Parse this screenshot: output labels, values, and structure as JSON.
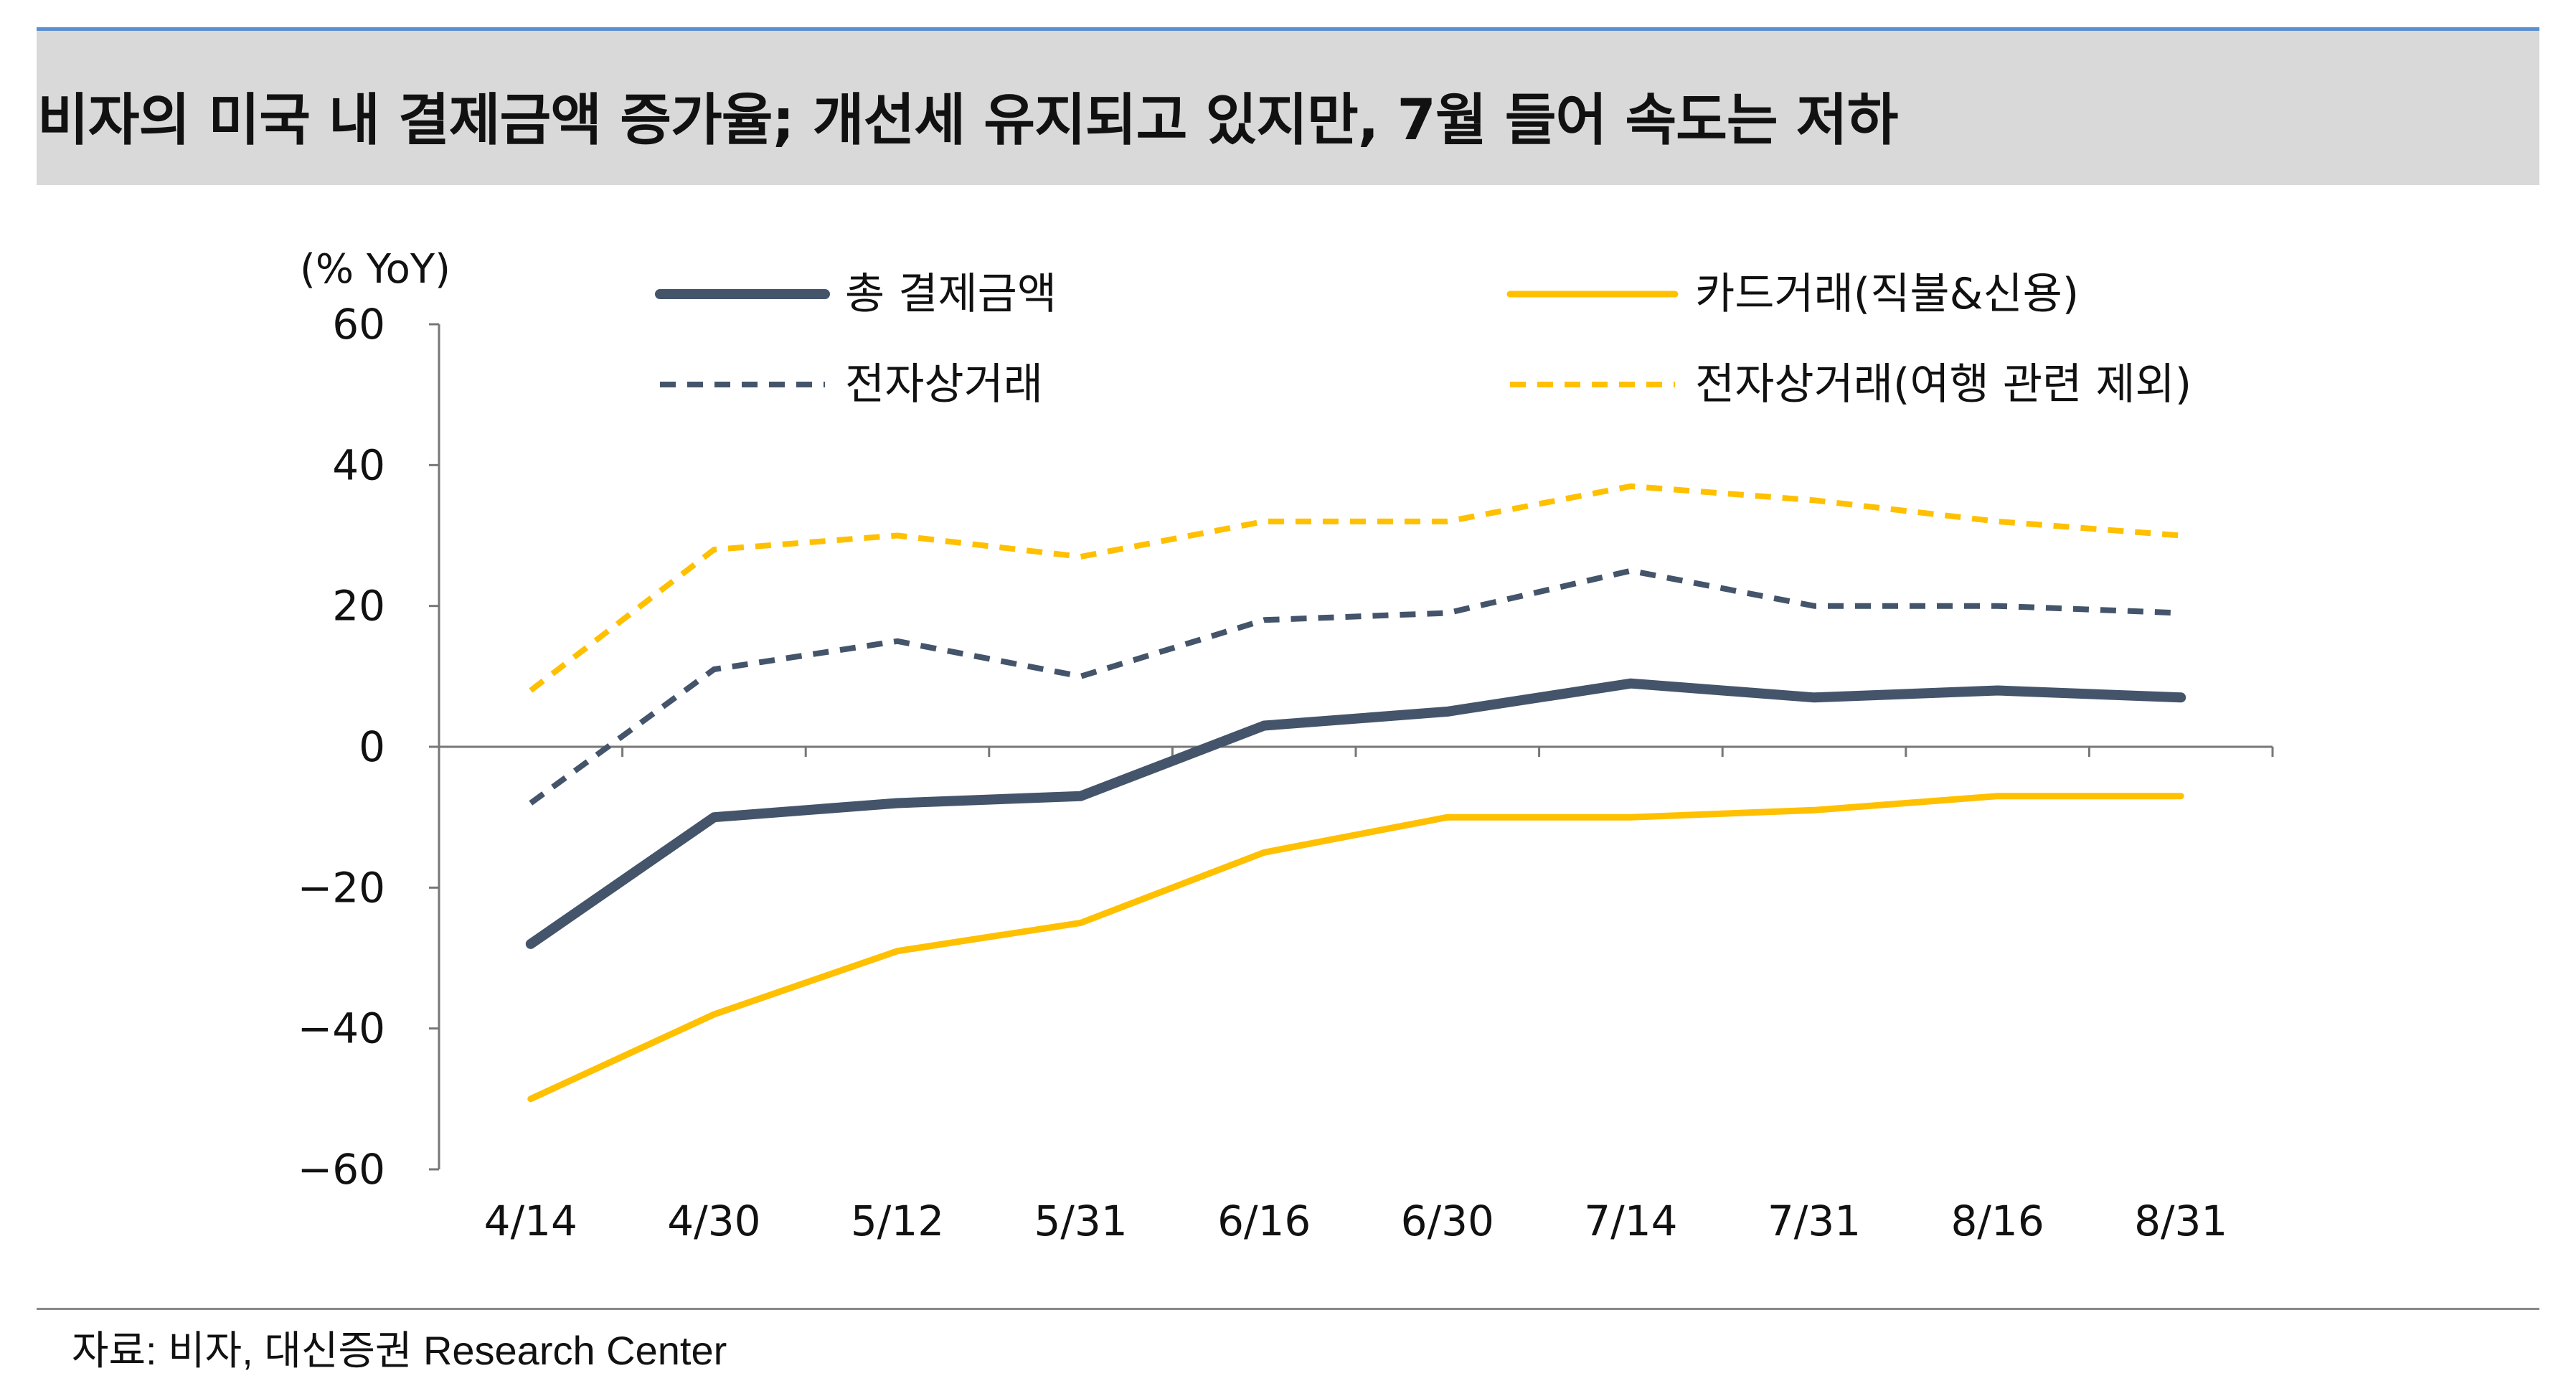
{
  "title": "비자의 미국 내 결제금액 증가율; 개선세 유지되고 있지만, 7월 들어 속도는 저하",
  "source": "자료: 비자, 대신증권 Research Center",
  "colors": {
    "navy": "#44546a",
    "gold": "#ffc000",
    "axis": "#777777"
  },
  "chart_data": {
    "type": "line",
    "ylabel": "(% YoY)",
    "ylim": [
      -60,
      60
    ],
    "yticks": [
      60,
      40,
      20,
      0,
      -20,
      -40,
      -60
    ],
    "ytick_labels": [
      "60",
      "40",
      "20",
      "0",
      "−20",
      "−40",
      "−60"
    ],
    "categories": [
      "4/14",
      "4/30",
      "5/12",
      "5/31",
      "6/16",
      "6/30",
      "7/14",
      "7/31",
      "8/16",
      "8/31"
    ],
    "legend_position": "top",
    "series": [
      {
        "name": "총 결제금액",
        "color": "#44546a",
        "style": "solid",
        "values": [
          -28,
          -10,
          -8,
          -7,
          3,
          5,
          9,
          7,
          8,
          7
        ]
      },
      {
        "name": "카드거래(직불&신용)",
        "color": "#ffc000",
        "style": "solid",
        "values": [
          -50,
          -38,
          -29,
          -25,
          -15,
          -10,
          -10,
          -9,
          -7,
          -7
        ]
      },
      {
        "name": "전자상거래",
        "color": "#44546a",
        "style": "dashed",
        "values": [
          -8,
          11,
          15,
          10,
          18,
          19,
          25,
          20,
          20,
          19
        ]
      },
      {
        "name": "전자상거래(여행 관련 제외)",
        "color": "#ffc000",
        "style": "dashed",
        "values": [
          8,
          28,
          30,
          27,
          32,
          32,
          37,
          35,
          32,
          30
        ]
      }
    ]
  }
}
